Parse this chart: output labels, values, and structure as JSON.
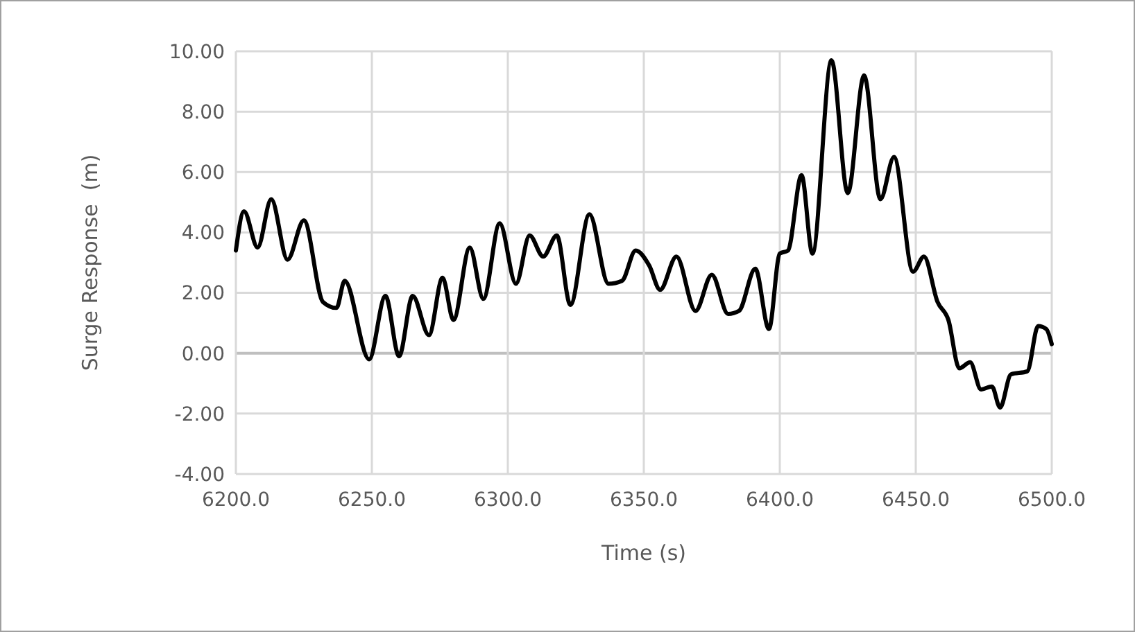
{
  "chart_data": {
    "type": "line",
    "xlabel": "Time (s)",
    "ylabel": "Surge Response  (m)",
    "xlim": [
      6200,
      6500
    ],
    "xticks": [
      {
        "value": 6200,
        "label": "6200.0"
      },
      {
        "value": 6250,
        "label": "6250.0"
      },
      {
        "value": 6300,
        "label": "6300.0"
      },
      {
        "value": 6350,
        "label": "6350.0"
      },
      {
        "value": 6400,
        "label": "6400.0"
      },
      {
        "value": 6450,
        "label": "6450.0"
      },
      {
        "value": 6500,
        "label": "6500.0"
      }
    ],
    "ylim": [
      -4,
      10
    ],
    "yticks": [
      {
        "value": -4,
        "label": "-4.00"
      },
      {
        "value": -2,
        "label": "-2.00"
      },
      {
        "value": 0,
        "label": "0.00"
      },
      {
        "value": 2,
        "label": "2.00"
      },
      {
        "value": 4,
        "label": "4.00"
      },
      {
        "value": 6,
        "label": "6.00"
      },
      {
        "value": 8,
        "label": "8.00"
      },
      {
        "value": 10,
        "label": "10.00"
      }
    ],
    "grid": true,
    "line_style": "solid",
    "marker": "none",
    "series": [
      {
        "color": "#000000",
        "x": [
          6200,
          6203,
          6208,
          6213,
          6219,
          6225,
          6232,
          6237,
          6240,
          6249,
          6255,
          6260,
          6265,
          6271,
          6276,
          6280,
          6286,
          6291,
          6297,
          6303,
          6308,
          6313,
          6318,
          6323,
          6330,
          6337,
          6342,
          6347,
          6352,
          6356,
          6362,
          6369,
          6375,
          6381,
          6385,
          6391,
          6396,
          6400,
          6403,
          6408,
          6412,
          6419,
          6425,
          6431,
          6437,
          6442,
          6449,
          6453,
          6458,
          6462,
          6466,
          6470,
          6474,
          6478,
          6481,
          6485,
          6491,
          6495,
          6498,
          6500
        ],
        "values": [
          3.4,
          4.7,
          3.5,
          5.1,
          3.1,
          4.4,
          1.7,
          1.5,
          2.4,
          -0.2,
          1.9,
          -0.1,
          1.9,
          0.6,
          2.5,
          1.1,
          3.5,
          1.8,
          4.3,
          2.3,
          3.9,
          3.2,
          3.9,
          1.6,
          4.6,
          2.3,
          2.4,
          3.4,
          2.9,
          2.1,
          3.2,
          1.4,
          2.6,
          1.3,
          1.4,
          2.8,
          0.8,
          3.3,
          3.4,
          5.9,
          3.3,
          9.7,
          5.3,
          9.2,
          5.1,
          6.5,
          2.7,
          3.2,
          1.7,
          1.1,
          -0.5,
          -0.3,
          -1.2,
          -1.1,
          -1.8,
          -0.7,
          -0.6,
          0.9,
          0.8,
          0.3
        ]
      }
    ]
  }
}
